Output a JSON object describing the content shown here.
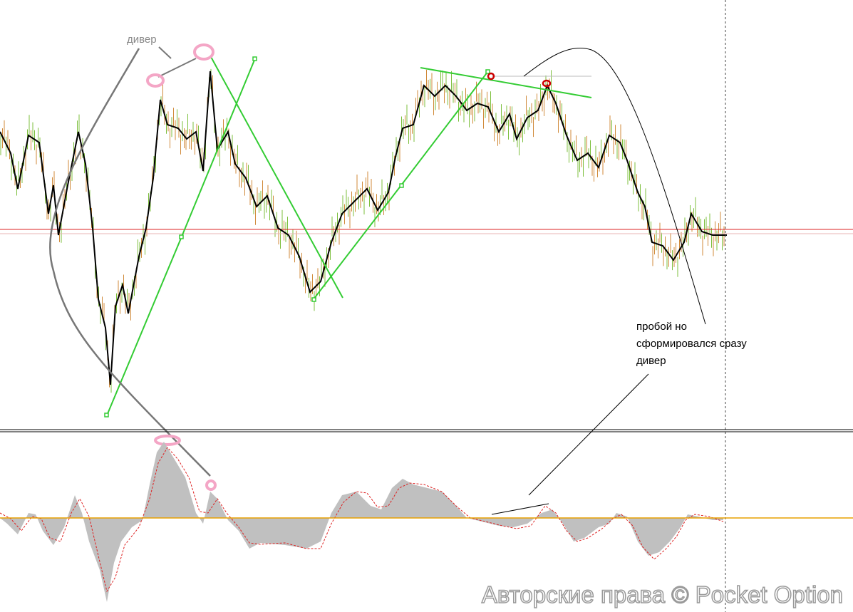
{
  "annotations": {
    "top_left": "дивер",
    "right": [
      "пробой  но",
      "сформировался сразу",
      "дивер"
    ]
  },
  "watermark": "Авторские права © Pocket Option"
}
